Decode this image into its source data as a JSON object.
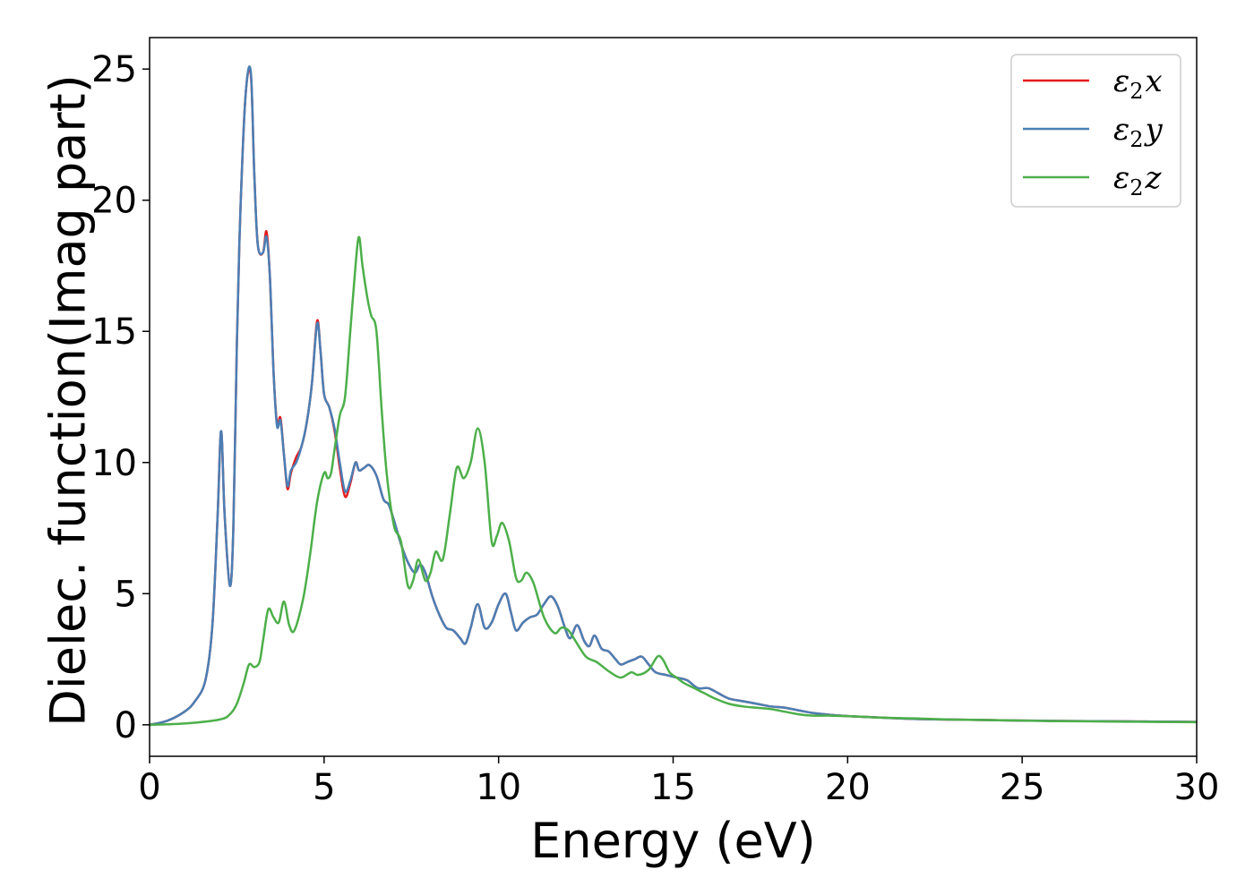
{
  "chart_data": {
    "type": "line",
    "title": "",
    "xlabel": "Energy (eV)",
    "ylabel": "Dielec. function(Imag part)",
    "xlim": [
      0,
      30
    ],
    "ylim": [
      -1.2,
      26.2
    ],
    "xticks": [
      0,
      5,
      10,
      15,
      20,
      25,
      30
    ],
    "yticks": [
      0,
      5,
      10,
      15,
      20,
      25
    ],
    "xtick_labels": [
      "0",
      "5",
      "10",
      "15",
      "20",
      "25",
      "30"
    ],
    "ytick_labels": [
      "0",
      "5",
      "10",
      "15",
      "20",
      "25"
    ],
    "grid": false,
    "legend": "top-right",
    "series": [
      {
        "name": "ε2x",
        "legend_base": "ε",
        "legend_sub": "2",
        "legend_tail": "x",
        "color": "#e41a1c",
        "x": [
          0,
          0.5,
          1.0,
          1.3,
          1.6,
          1.8,
          1.95,
          2.05,
          2.15,
          2.3,
          2.4,
          2.5,
          2.6,
          2.75,
          2.9,
          3.0,
          3.1,
          3.25,
          3.35,
          3.45,
          3.55,
          3.65,
          3.75,
          3.85,
          3.95,
          4.05,
          4.2,
          4.35,
          4.5,
          4.65,
          4.8,
          4.9,
          5.0,
          5.15,
          5.3,
          5.45,
          5.6,
          5.75,
          5.9,
          6.0,
          6.15,
          6.3,
          6.5,
          6.7,
          6.85,
          7.0,
          7.2,
          7.4,
          7.6,
          7.75,
          7.9,
          8.1,
          8.3,
          8.5,
          8.7,
          8.9,
          9.05,
          9.2,
          9.4,
          9.6,
          9.8,
          10.0,
          10.2,
          10.35,
          10.5,
          10.7,
          10.9,
          11.1,
          11.3,
          11.5,
          11.7,
          11.9,
          12.05,
          12.25,
          12.45,
          12.6,
          12.75,
          12.95,
          13.15,
          13.35,
          13.5,
          13.7,
          13.9,
          14.1,
          14.3,
          14.5,
          14.8,
          15.1,
          15.4,
          15.7,
          16.0,
          16.3,
          16.6,
          17.0,
          17.4,
          17.8,
          18.2,
          18.6,
          19.0,
          19.5,
          20.0,
          20.5,
          21.0,
          22.0,
          23.0,
          24.0,
          25.0,
          26.0,
          27.0,
          28.0,
          29.0,
          30.0
        ],
        "y": [
          0.0,
          0.15,
          0.5,
          0.9,
          1.7,
          3.8,
          8.0,
          11.2,
          8.0,
          5.3,
          7.5,
          14.5,
          19.5,
          24.0,
          24.8,
          21.0,
          18.3,
          18.0,
          18.8,
          17.0,
          13.5,
          11.5,
          11.7,
          10.3,
          9.0,
          9.6,
          10.2,
          10.6,
          11.5,
          13.0,
          15.4,
          14.2,
          12.6,
          12.1,
          11.2,
          9.8,
          8.7,
          9.2,
          10.0,
          9.7,
          9.8,
          9.9,
          9.5,
          8.6,
          8.4,
          7.8,
          6.9,
          6.2,
          5.8,
          6.1,
          5.8,
          4.9,
          4.2,
          3.7,
          3.6,
          3.3,
          3.1,
          3.7,
          4.6,
          3.7,
          3.9,
          4.6,
          5.0,
          4.3,
          3.6,
          3.9,
          4.1,
          4.2,
          4.6,
          4.9,
          4.5,
          3.7,
          3.3,
          3.8,
          3.2,
          3.0,
          3.4,
          2.9,
          2.8,
          2.5,
          2.3,
          2.4,
          2.5,
          2.6,
          2.3,
          2.0,
          1.9,
          1.8,
          1.7,
          1.4,
          1.4,
          1.2,
          1.0,
          0.9,
          0.8,
          0.7,
          0.65,
          0.55,
          0.45,
          0.38,
          0.33,
          0.3,
          0.27,
          0.22,
          0.2,
          0.18,
          0.16,
          0.15,
          0.14,
          0.13,
          0.12,
          0.11
        ]
      },
      {
        "name": "ε2y",
        "legend_base": "ε",
        "legend_sub": "2",
        "legend_tail": "y",
        "color": "#4a7fb5",
        "x": [
          0,
          0.5,
          1.0,
          1.3,
          1.6,
          1.8,
          1.95,
          2.05,
          2.15,
          2.3,
          2.4,
          2.5,
          2.6,
          2.75,
          2.9,
          3.0,
          3.1,
          3.25,
          3.35,
          3.45,
          3.55,
          3.65,
          3.75,
          3.85,
          3.95,
          4.05,
          4.2,
          4.35,
          4.5,
          4.65,
          4.8,
          4.9,
          5.0,
          5.15,
          5.3,
          5.45,
          5.6,
          5.75,
          5.9,
          6.0,
          6.15,
          6.3,
          6.5,
          6.7,
          6.85,
          7.0,
          7.2,
          7.4,
          7.6,
          7.75,
          7.9,
          8.1,
          8.3,
          8.5,
          8.7,
          8.9,
          9.05,
          9.2,
          9.4,
          9.6,
          9.8,
          10.0,
          10.2,
          10.35,
          10.5,
          10.7,
          10.9,
          11.1,
          11.3,
          11.5,
          11.7,
          11.9,
          12.05,
          12.25,
          12.45,
          12.6,
          12.75,
          12.95,
          13.15,
          13.35,
          13.5,
          13.7,
          13.9,
          14.1,
          14.3,
          14.5,
          14.8,
          15.1,
          15.4,
          15.7,
          16.0,
          16.3,
          16.6,
          17.0,
          17.4,
          17.8,
          18.2,
          18.6,
          19.0,
          19.5,
          20.0,
          20.5,
          21.0,
          22.0,
          23.0,
          24.0,
          25.0,
          26.0,
          27.0,
          28.0,
          29.0,
          30.0
        ],
        "y": [
          0.0,
          0.15,
          0.5,
          0.9,
          1.7,
          3.8,
          8.0,
          11.2,
          8.0,
          5.3,
          7.5,
          14.5,
          19.5,
          24.0,
          24.9,
          21.0,
          18.3,
          18.0,
          18.6,
          17.0,
          13.5,
          11.4,
          11.6,
          10.3,
          9.1,
          9.7,
          10.0,
          10.6,
          11.5,
          13.0,
          15.3,
          14.2,
          12.6,
          12.1,
          11.3,
          10.0,
          8.9,
          9.3,
          10.0,
          9.7,
          9.8,
          9.9,
          9.5,
          8.6,
          8.4,
          7.8,
          6.9,
          6.2,
          5.8,
          6.1,
          5.8,
          4.9,
          4.2,
          3.7,
          3.6,
          3.3,
          3.1,
          3.7,
          4.6,
          3.7,
          3.9,
          4.6,
          5.0,
          4.3,
          3.6,
          3.9,
          4.1,
          4.2,
          4.6,
          4.9,
          4.5,
          3.7,
          3.3,
          3.8,
          3.2,
          3.0,
          3.4,
          2.9,
          2.8,
          2.5,
          2.3,
          2.4,
          2.5,
          2.6,
          2.3,
          2.0,
          1.9,
          1.8,
          1.7,
          1.4,
          1.4,
          1.2,
          1.0,
          0.9,
          0.8,
          0.7,
          0.65,
          0.55,
          0.45,
          0.38,
          0.33,
          0.3,
          0.27,
          0.22,
          0.2,
          0.18,
          0.16,
          0.15,
          0.14,
          0.13,
          0.12,
          0.11
        ]
      },
      {
        "name": "ε2z",
        "legend_base": "ε",
        "legend_sub": "2",
        "legend_tail": "z",
        "color": "#4daf4a",
        "x": [
          0,
          1.0,
          2.0,
          2.3,
          2.5,
          2.7,
          2.85,
          3.0,
          3.15,
          3.25,
          3.4,
          3.55,
          3.7,
          3.85,
          4.0,
          4.15,
          4.4,
          4.6,
          4.8,
          5.0,
          5.1,
          5.2,
          5.3,
          5.45,
          5.6,
          5.75,
          5.9,
          6.0,
          6.1,
          6.25,
          6.35,
          6.5,
          6.65,
          6.8,
          7.0,
          7.2,
          7.4,
          7.55,
          7.7,
          7.9,
          8.05,
          8.2,
          8.4,
          8.6,
          8.8,
          9.0,
          9.2,
          9.4,
          9.6,
          9.8,
          9.95,
          10.1,
          10.3,
          10.5,
          10.65,
          10.8,
          11.0,
          11.3,
          11.6,
          11.8,
          12.0,
          12.2,
          12.5,
          12.8,
          13.0,
          13.2,
          13.5,
          13.8,
          14.0,
          14.3,
          14.55,
          14.7,
          14.9,
          15.1,
          15.3,
          15.6,
          15.9,
          16.2,
          16.6,
          17.0,
          17.4,
          17.8,
          18.2,
          18.6,
          19.0,
          19.5,
          20.0,
          20.5,
          21.0,
          22.0,
          23.0,
          24.0,
          25.0,
          26.0,
          27.0,
          28.0,
          29.0,
          30.0
        ],
        "y": [
          0.0,
          0.05,
          0.2,
          0.4,
          0.8,
          1.6,
          2.3,
          2.2,
          2.4,
          3.2,
          4.4,
          4.1,
          3.9,
          4.7,
          3.8,
          3.6,
          4.8,
          6.5,
          8.5,
          9.6,
          9.4,
          9.6,
          10.5,
          11.8,
          12.5,
          15.0,
          17.5,
          18.6,
          17.5,
          16.2,
          15.6,
          15.0,
          12.0,
          9.5,
          7.6,
          7.0,
          5.3,
          5.5,
          6.3,
          5.5,
          5.8,
          6.6,
          6.3,
          8.0,
          9.8,
          9.4,
          10.0,
          11.3,
          10.0,
          7.0,
          7.2,
          7.7,
          7.0,
          5.6,
          5.5,
          5.8,
          5.4,
          4.1,
          3.5,
          3.7,
          3.6,
          3.2,
          2.6,
          2.4,
          2.2,
          2.0,
          1.8,
          2.0,
          1.9,
          2.1,
          2.6,
          2.5,
          2.0,
          1.8,
          1.6,
          1.4,
          1.2,
          1.0,
          0.8,
          0.7,
          0.65,
          0.6,
          0.5,
          0.4,
          0.35,
          0.35,
          0.33,
          0.3,
          0.27,
          0.24,
          0.2,
          0.18,
          0.16,
          0.14,
          0.13,
          0.12,
          0.11,
          0.1
        ]
      }
    ]
  }
}
